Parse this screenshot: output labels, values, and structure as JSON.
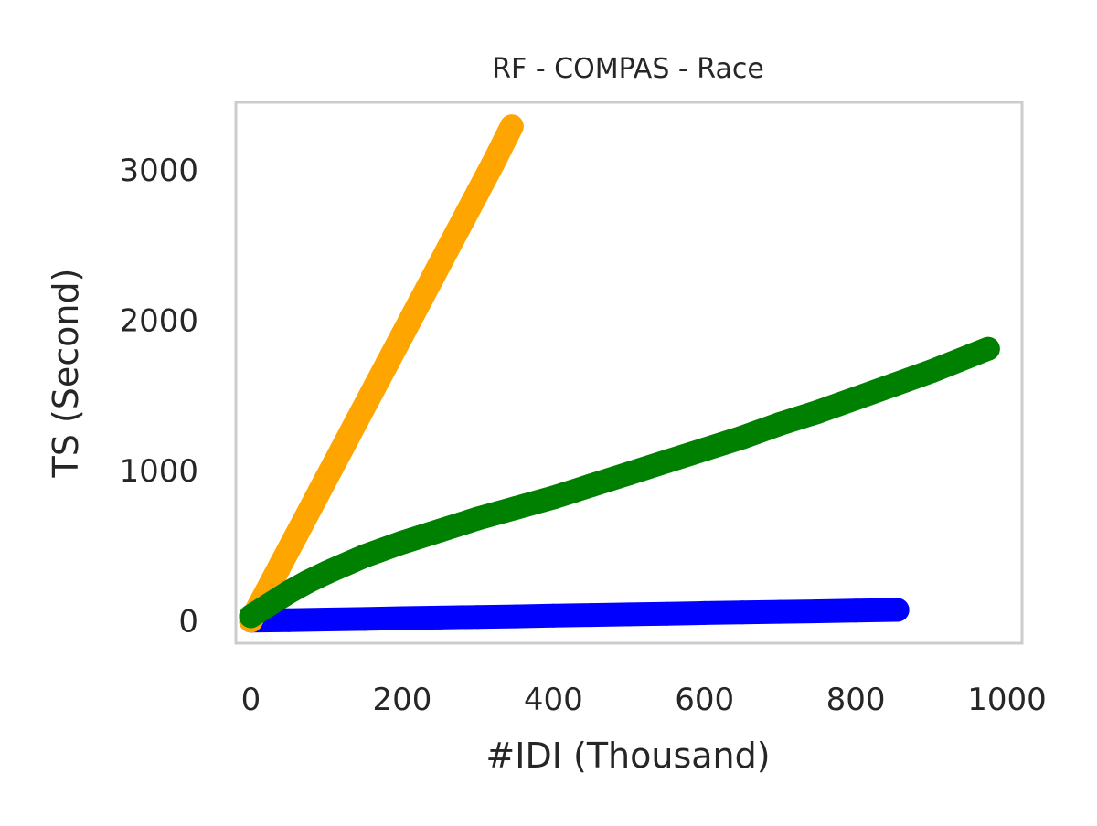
{
  "chart_data": {
    "type": "scatter",
    "title": "RF - COMPAS - Race",
    "xlabel": "#IDI (Thousand)",
    "ylabel": "TS (Second)",
    "xlim": [
      -20,
      1020
    ],
    "ylim": [
      -150,
      3450
    ],
    "xticks": [
      0,
      200,
      400,
      600,
      800,
      1000
    ],
    "yticks": [
      0,
      1000,
      2000,
      3000
    ],
    "grid": false,
    "legend": "none",
    "colors": {
      "frame": "#cccccc",
      "text": "#262626",
      "background": "#ffffff"
    },
    "series": [
      {
        "color": "#0000ff",
        "x": [
          0,
          50,
          100,
          150,
          200,
          250,
          300,
          350,
          400,
          450,
          500,
          550,
          600,
          650,
          700,
          750,
          800,
          855
        ],
        "y": [
          0,
          4,
          8,
          12,
          17,
          21,
          25,
          29,
          34,
          38,
          42,
          46,
          51,
          55,
          59,
          63,
          68,
          72
        ]
      },
      {
        "color": "#ffa500",
        "x": [
          0,
          20,
          40,
          60,
          80,
          100,
          120,
          140,
          160,
          180,
          200,
          220,
          240,
          260,
          280,
          300,
          320,
          345
        ],
        "y": [
          0,
          190,
          380,
          570,
          760,
          950,
          1140,
          1330,
          1520,
          1710,
          1900,
          2090,
          2280,
          2470,
          2660,
          2850,
          3040,
          3290
        ]
      },
      {
        "color": "#008000",
        "x": [
          0,
          25,
          50,
          75,
          100,
          150,
          200,
          250,
          300,
          350,
          400,
          450,
          500,
          550,
          600,
          650,
          700,
          750,
          800,
          850,
          900,
          975
        ],
        "y": [
          30,
          110,
          190,
          260,
          320,
          430,
          520,
          600,
          680,
          750,
          820,
          900,
          980,
          1060,
          1140,
          1220,
          1310,
          1390,
          1480,
          1570,
          1660,
          1810
        ]
      }
    ]
  }
}
